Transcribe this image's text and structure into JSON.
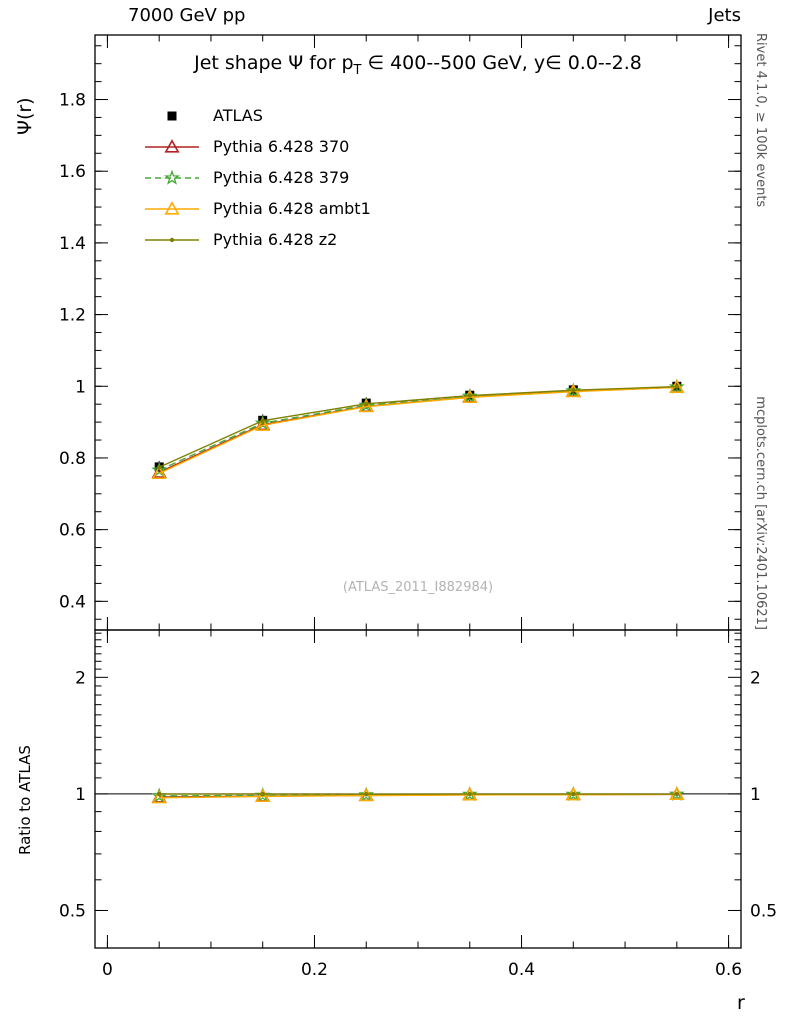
{
  "header": {
    "left": "7000 GeV pp",
    "right": "Jets"
  },
  "side_notes": {
    "top_right": "Rivet 4.1.0, ≥ 100k events",
    "bottom_right": "mcplots.cern.ch [arXiv:2401.10621]"
  },
  "watermark": "(ATLAS_2011_I882984)",
  "chart_data": {
    "type": "line",
    "title": "Jet shape Ψ for pT ∈ 400--500 GeV, y∈ 0.0--2.8",
    "title_parts": {
      "pre": "Jet shape Ψ for p",
      "sub": "T",
      "post": " ∈ 400--500 GeV, y∈ 0.0--2.8"
    },
    "xlabel": "r",
    "ylabel_main": "Ψ(r)",
    "ylabel_ratio": "Ratio to ATLAS",
    "xlim": [
      -0.012,
      0.612
    ],
    "ylim_main": [
      0.32,
      1.98
    ],
    "ylim_ratio": [
      0.4,
      2.65
    ],
    "ratio_scale": "log",
    "grid": false,
    "legend_position": "top-left-inside",
    "x": [
      0.05,
      0.15,
      0.25,
      0.35,
      0.45,
      0.55
    ],
    "series": [
      {
        "name": "ATLAS",
        "color": "#000000",
        "marker": "square-filled",
        "line": "none",
        "values": [
          0.775,
          0.905,
          0.953,
          0.975,
          0.99,
          1.0
        ]
      },
      {
        "name": "Pythia 6.428 370",
        "color": "#b22222",
        "marker": "triangle-open",
        "line": "solid",
        "values": [
          0.76,
          0.893,
          0.944,
          0.97,
          0.986,
          0.997
        ],
        "ratio": [
          0.981,
          0.987,
          0.991,
          0.995,
          0.996,
          0.997
        ]
      },
      {
        "name": "Pythia 6.428 379",
        "color": "#44aa33",
        "marker": "star-open",
        "line": "dashed",
        "values": [
          0.766,
          0.897,
          0.947,
          0.972,
          0.987,
          0.998
        ],
        "ratio": [
          0.988,
          0.991,
          0.994,
          0.997,
          0.997,
          0.998
        ]
      },
      {
        "name": "Pythia 6.428 ambt1",
        "color": "#ffaa00",
        "marker": "triangle-open",
        "line": "solid",
        "values": [
          0.757,
          0.891,
          0.943,
          0.969,
          0.985,
          0.997
        ],
        "ratio": [
          0.977,
          0.985,
          0.99,
          0.994,
          0.995,
          0.997
        ]
      },
      {
        "name": "Pythia 6.428 z2",
        "color": "#808000",
        "marker": "dot",
        "line": "solid",
        "values": [
          0.774,
          0.904,
          0.951,
          0.974,
          0.989,
          0.999
        ],
        "ratio": [
          0.999,
          0.999,
          0.998,
          0.999,
          0.999,
          0.999
        ]
      }
    ],
    "ticks": {
      "x_major": [
        0,
        0.2,
        0.4,
        0.6
      ],
      "x_major_labels": [
        "0",
        "0.2",
        "0.4",
        "0.6"
      ],
      "x_minor": [
        0,
        0.05,
        0.1,
        0.15,
        0.2,
        0.25,
        0.3,
        0.35,
        0.4,
        0.45,
        0.5,
        0.55,
        0.6
      ],
      "y_major": [
        0.4,
        0.6,
        0.8,
        1.0,
        1.2,
        1.4,
        1.6,
        1.8
      ],
      "y_major_labels": [
        "0.4",
        "0.6",
        "0.8",
        "1",
        "1.2",
        "1.4",
        "1.6",
        "1.8"
      ],
      "y_minor": [
        0.35,
        0.4,
        0.45,
        0.5,
        0.55,
        0.6,
        0.65,
        0.7,
        0.75,
        0.8,
        0.85,
        0.9,
        0.95,
        1.0,
        1.05,
        1.1,
        1.15,
        1.2,
        1.25,
        1.3,
        1.35,
        1.4,
        1.45,
        1.5,
        1.55,
        1.6,
        1.65,
        1.7,
        1.75,
        1.8,
        1.85,
        1.9,
        1.95
      ],
      "ratio_major": [
        0.5,
        1,
        2
      ],
      "ratio_major_labels": [
        "0.5",
        "1",
        "2"
      ],
      "ratio_minor": [
        0.4,
        0.5,
        0.6,
        0.7,
        0.8,
        0.9,
        1.1,
        1.2,
        1.3,
        1.4,
        1.5,
        1.6,
        1.7,
        1.8,
        1.9,
        2.1,
        2.2,
        2.3,
        2.4,
        2.5,
        2.6
      ]
    }
  }
}
